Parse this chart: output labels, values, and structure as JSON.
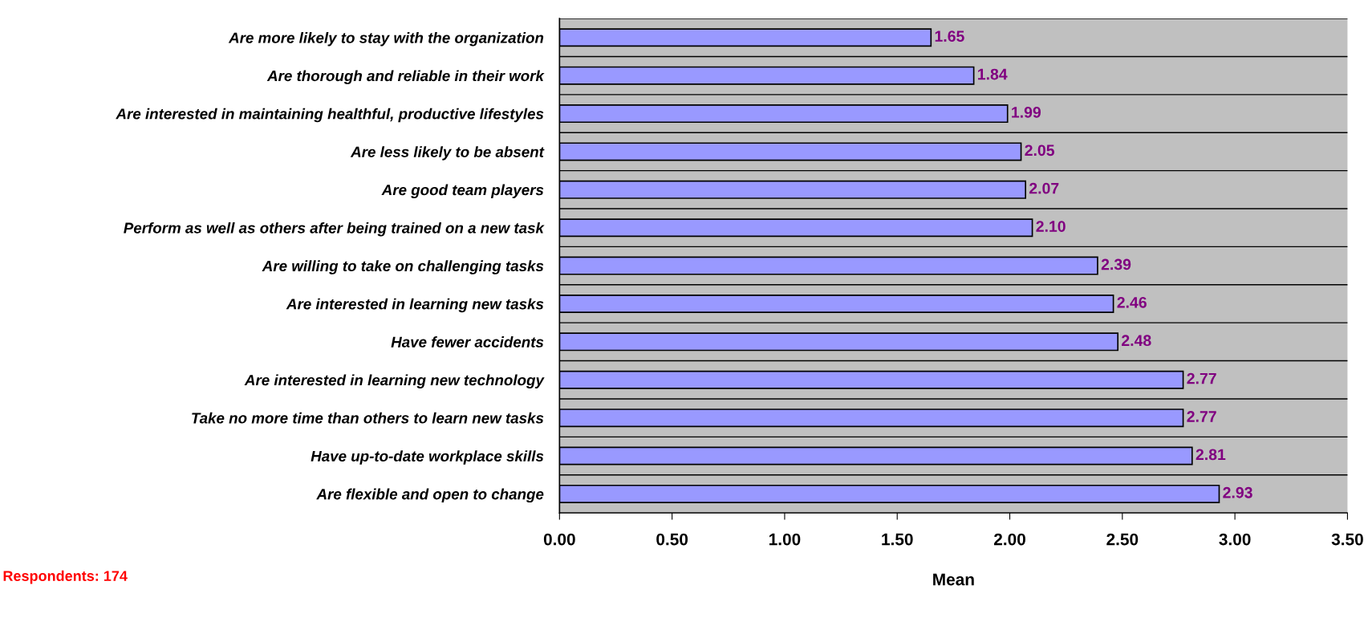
{
  "chart_data": {
    "type": "bar",
    "orientation": "horizontal",
    "categories": [
      "Are more likely to stay with the organization",
      "Are thorough and reliable in their work",
      "Are interested in maintaining healthful, productive lifestyles",
      "Are less likely to be absent",
      "Are good team players",
      "Perform as well as others after being trained on a new task",
      "Are willing to take on challenging tasks",
      "Are interested in learning new tasks",
      "Have fewer accidents",
      "Are interested in learning new technology",
      "Take no more time than others to learn new tasks",
      "Have up-to-date workplace skills",
      "Are flexible and open to change"
    ],
    "values": [
      1.65,
      1.84,
      1.99,
      2.05,
      2.07,
      2.1,
      2.39,
      2.46,
      2.48,
      2.77,
      2.77,
      2.81,
      2.93
    ],
    "value_labels": [
      "1.65",
      "1.84",
      "1.99",
      "2.05",
      "2.07",
      "2.10",
      "2.39",
      "2.46",
      "2.48",
      "2.77",
      "2.77",
      "2.81",
      "2.93"
    ],
    "color": "#9999ff",
    "xlabel": "Mean",
    "xlim": [
      0,
      3.5
    ],
    "xticks": [
      {
        "value": 0,
        "label": "0.00"
      },
      {
        "value": 0.5,
        "label": "0.50"
      },
      {
        "value": 1,
        "label": "1.00"
      },
      {
        "value": 1.5,
        "label": "1.50"
      },
      {
        "value": 2,
        "label": "2.00"
      },
      {
        "value": 2.5,
        "label": "2.50"
      },
      {
        "value": 3,
        "label": "3.00"
      },
      {
        "value": 3.5,
        "label": "3.50"
      }
    ],
    "grid": "y",
    "legend": false,
    "annotations": [
      "Respondents: 174"
    ]
  }
}
